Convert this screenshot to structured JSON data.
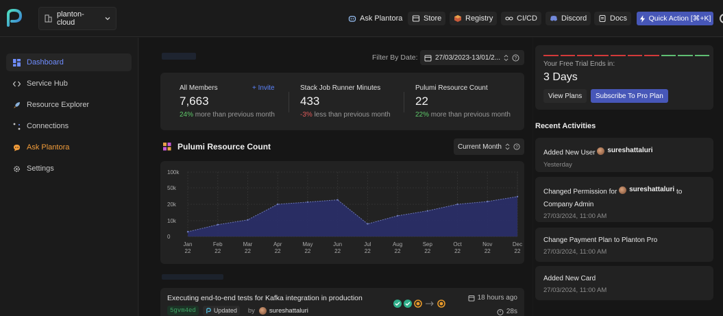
{
  "topbar": {
    "org": "planton-cloud",
    "nav": [
      {
        "label": "Ask Plantora",
        "icon": "robot-icon"
      },
      {
        "label": "Store",
        "icon": "store-icon"
      },
      {
        "label": "Registry",
        "icon": "cube-icon"
      },
      {
        "label": "CI/CD",
        "icon": "infinity-icon"
      },
      {
        "label": "Discord",
        "icon": "discord-icon"
      },
      {
        "label": "Docs",
        "icon": "docs-icon"
      }
    ],
    "quick_action": "Quick Action [⌘+K]"
  },
  "sidebar": {
    "items": [
      {
        "label": "Dashboard",
        "icon": "dashboard-icon"
      },
      {
        "label": "Service Hub",
        "icon": "code-icon"
      },
      {
        "label": "Resource Explorer",
        "icon": "rocket-icon"
      },
      {
        "label": "Connections",
        "icon": "nodes-icon"
      },
      {
        "label": "Ask Plantora",
        "icon": "chat-icon"
      },
      {
        "label": "Settings",
        "icon": "gear-icon"
      }
    ]
  },
  "main": {
    "filter_label": "Filter By Date:",
    "date_range": "27/03/2023-13/01/2...",
    "stats": [
      {
        "label": "All Members",
        "value": "7,663",
        "delta": "24%",
        "delta_text": " more than previous month",
        "action": "+ Invite"
      },
      {
        "label": "Stack Job Runner Minutes",
        "value": "433",
        "delta": "-3%",
        "delta_text": " less than previous month"
      },
      {
        "label": "Pulumi Resource Count",
        "value": "22",
        "delta": "22%",
        "delta_text": " more than previous month"
      }
    ],
    "chart_title": "Pulumi Resource Count",
    "chart_period": "Current Month",
    "job": {
      "title": "Executing end-to-end tests for Kafka integration in production",
      "hash": "5gvm4ed",
      "status": "Updated",
      "by": "by",
      "user": "sureshattaluri",
      "time_ago": "18 hours ago",
      "duration": "28s"
    }
  },
  "chart_data": {
    "type": "area",
    "categories": [
      "Jan 22",
      "Feb 22",
      "Mar 22",
      "Apr 22",
      "May 22",
      "Jun 22",
      "Jul 22",
      "Aug 22",
      "Sep 22",
      "Oct 22",
      "Nov 22",
      "Dec 22"
    ],
    "x_labels_top": [
      "Jan",
      "Feb",
      "Mar",
      "Apr",
      "May",
      "Jun",
      "Jul",
      "Aug",
      "Sep",
      "Oct",
      "Nov",
      "Dec"
    ],
    "x_labels_bottom": [
      "22",
      "22",
      "22",
      "22",
      "22",
      "22",
      "22",
      "22",
      "22",
      "22",
      "22",
      "22"
    ],
    "y_ticks": [
      0,
      10000,
      20000,
      50000,
      100000
    ],
    "y_tick_labels": [
      "0",
      "10k",
      "20k",
      "50k",
      "100k"
    ],
    "values": [
      3000,
      7500,
      10500,
      20000,
      24000,
      28000,
      8000,
      13000,
      16000,
      20000,
      25000,
      34000
    ],
    "ylim": [
      0,
      100000
    ],
    "grid": true,
    "fill_color": "#2a2f6a",
    "line_color": "#6f7ab8"
  },
  "right": {
    "trial_label": "Your Free Trial Ends in:",
    "trial_days": "3 Days",
    "trial_bars": [
      "#d43a3a",
      "#d43a3a",
      "#d43a3a",
      "#d43a3a",
      "#d43a3a",
      "#d43a3a",
      "#d43a3a",
      "#5fbf73",
      "#5fbf73",
      "#5fbf73"
    ],
    "view_plans": "View Plans",
    "subscribe": "Subscribe To Pro Plan",
    "recent_title": "Recent Activities",
    "activities": [
      {
        "pre": "Added New User ",
        "user": "sureshattaluri",
        "post": "",
        "time": "Yesterday"
      },
      {
        "pre": "Changed Permission for ",
        "user": "sureshattaluri",
        "post": " to Company Admin",
        "time": "27/03/2024, 11:00 AM"
      },
      {
        "pre": "Change Payment Plan to Planton Pro",
        "user": "",
        "post": "",
        "time": "27/03/2024, 11:00 AM"
      },
      {
        "pre": "Added New Card",
        "user": "",
        "post": "",
        "time": "27/03/2024, 11:00 AM"
      }
    ]
  }
}
